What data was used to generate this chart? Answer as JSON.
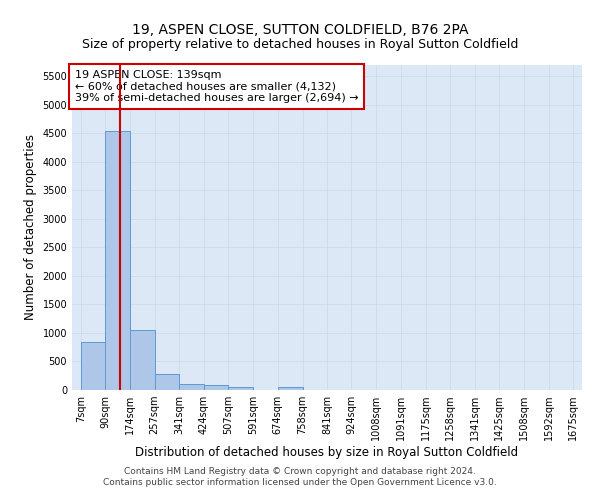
{
  "title": "19, ASPEN CLOSE, SUTTON COLDFIELD, B76 2PA",
  "subtitle": "Size of property relative to detached houses in Royal Sutton Coldfield",
  "xlabel": "Distribution of detached houses by size in Royal Sutton Coldfield",
  "ylabel": "Number of detached properties",
  "footnote1": "Contains HM Land Registry data © Crown copyright and database right 2024.",
  "footnote2": "Contains public sector information licensed under the Open Government Licence v3.0.",
  "annotation_title": "19 ASPEN CLOSE: 139sqm",
  "annotation_line1": "← 60% of detached houses are smaller (4,132)",
  "annotation_line2": "39% of semi-detached houses are larger (2,694) →",
  "property_size": 139,
  "bar_left_edges": [
    7,
    90,
    174,
    257,
    341,
    424,
    507,
    591,
    674,
    758,
    841,
    924,
    1008,
    1091,
    1175,
    1258,
    1341,
    1425,
    1508,
    1592
  ],
  "bar_widths": [
    83,
    84,
    83,
    84,
    83,
    83,
    84,
    83,
    84,
    83,
    83,
    84,
    83,
    84,
    83,
    83,
    84,
    83,
    84,
    83
  ],
  "bar_heights": [
    850,
    4550,
    1050,
    280,
    100,
    80,
    50,
    0,
    50,
    0,
    0,
    0,
    0,
    0,
    0,
    0,
    0,
    0,
    0,
    0
  ],
  "bar_color": "#aec6e8",
  "bar_edge_color": "#5b9bd5",
  "vline_x": 139,
  "vline_color": "#cc0000",
  "ylim": [
    0,
    5700
  ],
  "yticks": [
    0,
    500,
    1000,
    1500,
    2000,
    2500,
    3000,
    3500,
    4000,
    4500,
    5000,
    5500
  ],
  "xtick_labels": [
    "7sqm",
    "90sqm",
    "174sqm",
    "257sqm",
    "341sqm",
    "424sqm",
    "507sqm",
    "591sqm",
    "674sqm",
    "758sqm",
    "841sqm",
    "924sqm",
    "1008sqm",
    "1091sqm",
    "1175sqm",
    "1258sqm",
    "1341sqm",
    "1425sqm",
    "1508sqm",
    "1592sqm",
    "1675sqm"
  ],
  "xtick_positions": [
    7,
    90,
    174,
    257,
    341,
    424,
    507,
    591,
    674,
    758,
    841,
    924,
    1008,
    1091,
    1175,
    1258,
    1341,
    1425,
    1508,
    1592,
    1675
  ],
  "grid_color": "#c8d8e8",
  "background_color": "#dce8f5",
  "annotation_box_color": "#ffffff",
  "annotation_box_edge": "#cc0000",
  "title_fontsize": 10,
  "subtitle_fontsize": 9,
  "axis_label_fontsize": 8.5,
  "tick_fontsize": 7,
  "annotation_fontsize": 8,
  "footnote_fontsize": 6.5
}
